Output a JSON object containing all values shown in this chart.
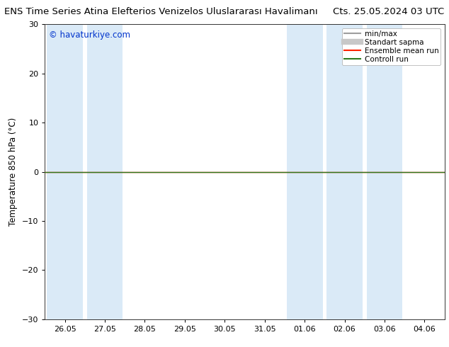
{
  "title_left": "ENS Time Series Atina Elefterios Venizelos Uluslararası Havalimanı",
  "title_right": "Cts. 25.05.2024 03 UTC",
  "ylabel": "Temperature 850 hPa (°C)",
  "watermark": "© havaturkiye.com",
  "ylim": [
    -30,
    30
  ],
  "yticks": [
    -30,
    -20,
    -10,
    0,
    10,
    20,
    30
  ],
  "x_labels": [
    "26.05",
    "27.05",
    "28.05",
    "29.05",
    "30.05",
    "31.05",
    "01.06",
    "02.06",
    "03.06",
    "04.06"
  ],
  "n_points": 10,
  "shaded_indices": [
    0,
    1,
    6,
    7,
    8
  ],
  "band_color": "#daeaf7",
  "bg_color": "#ffffff",
  "green_line_color": "#2d7a1f",
  "red_line_color": "#ff2200",
  "legend_items": [
    {
      "label": "min/max",
      "color": "#9e9e9e",
      "lw": 1.5
    },
    {
      "label": "Standart sapma",
      "color": "#c8c8c8",
      "lw": 6
    },
    {
      "label": "Ensemble mean run",
      "color": "#ff2200",
      "lw": 1.5
    },
    {
      "label": "Controll run",
      "color": "#2d7a1f",
      "lw": 1.5
    }
  ],
  "title_fontsize": 9.5,
  "tick_fontsize": 8,
  "ylabel_fontsize": 8.5,
  "watermark_color": "#0033cc",
  "watermark_fontsize": 8.5
}
